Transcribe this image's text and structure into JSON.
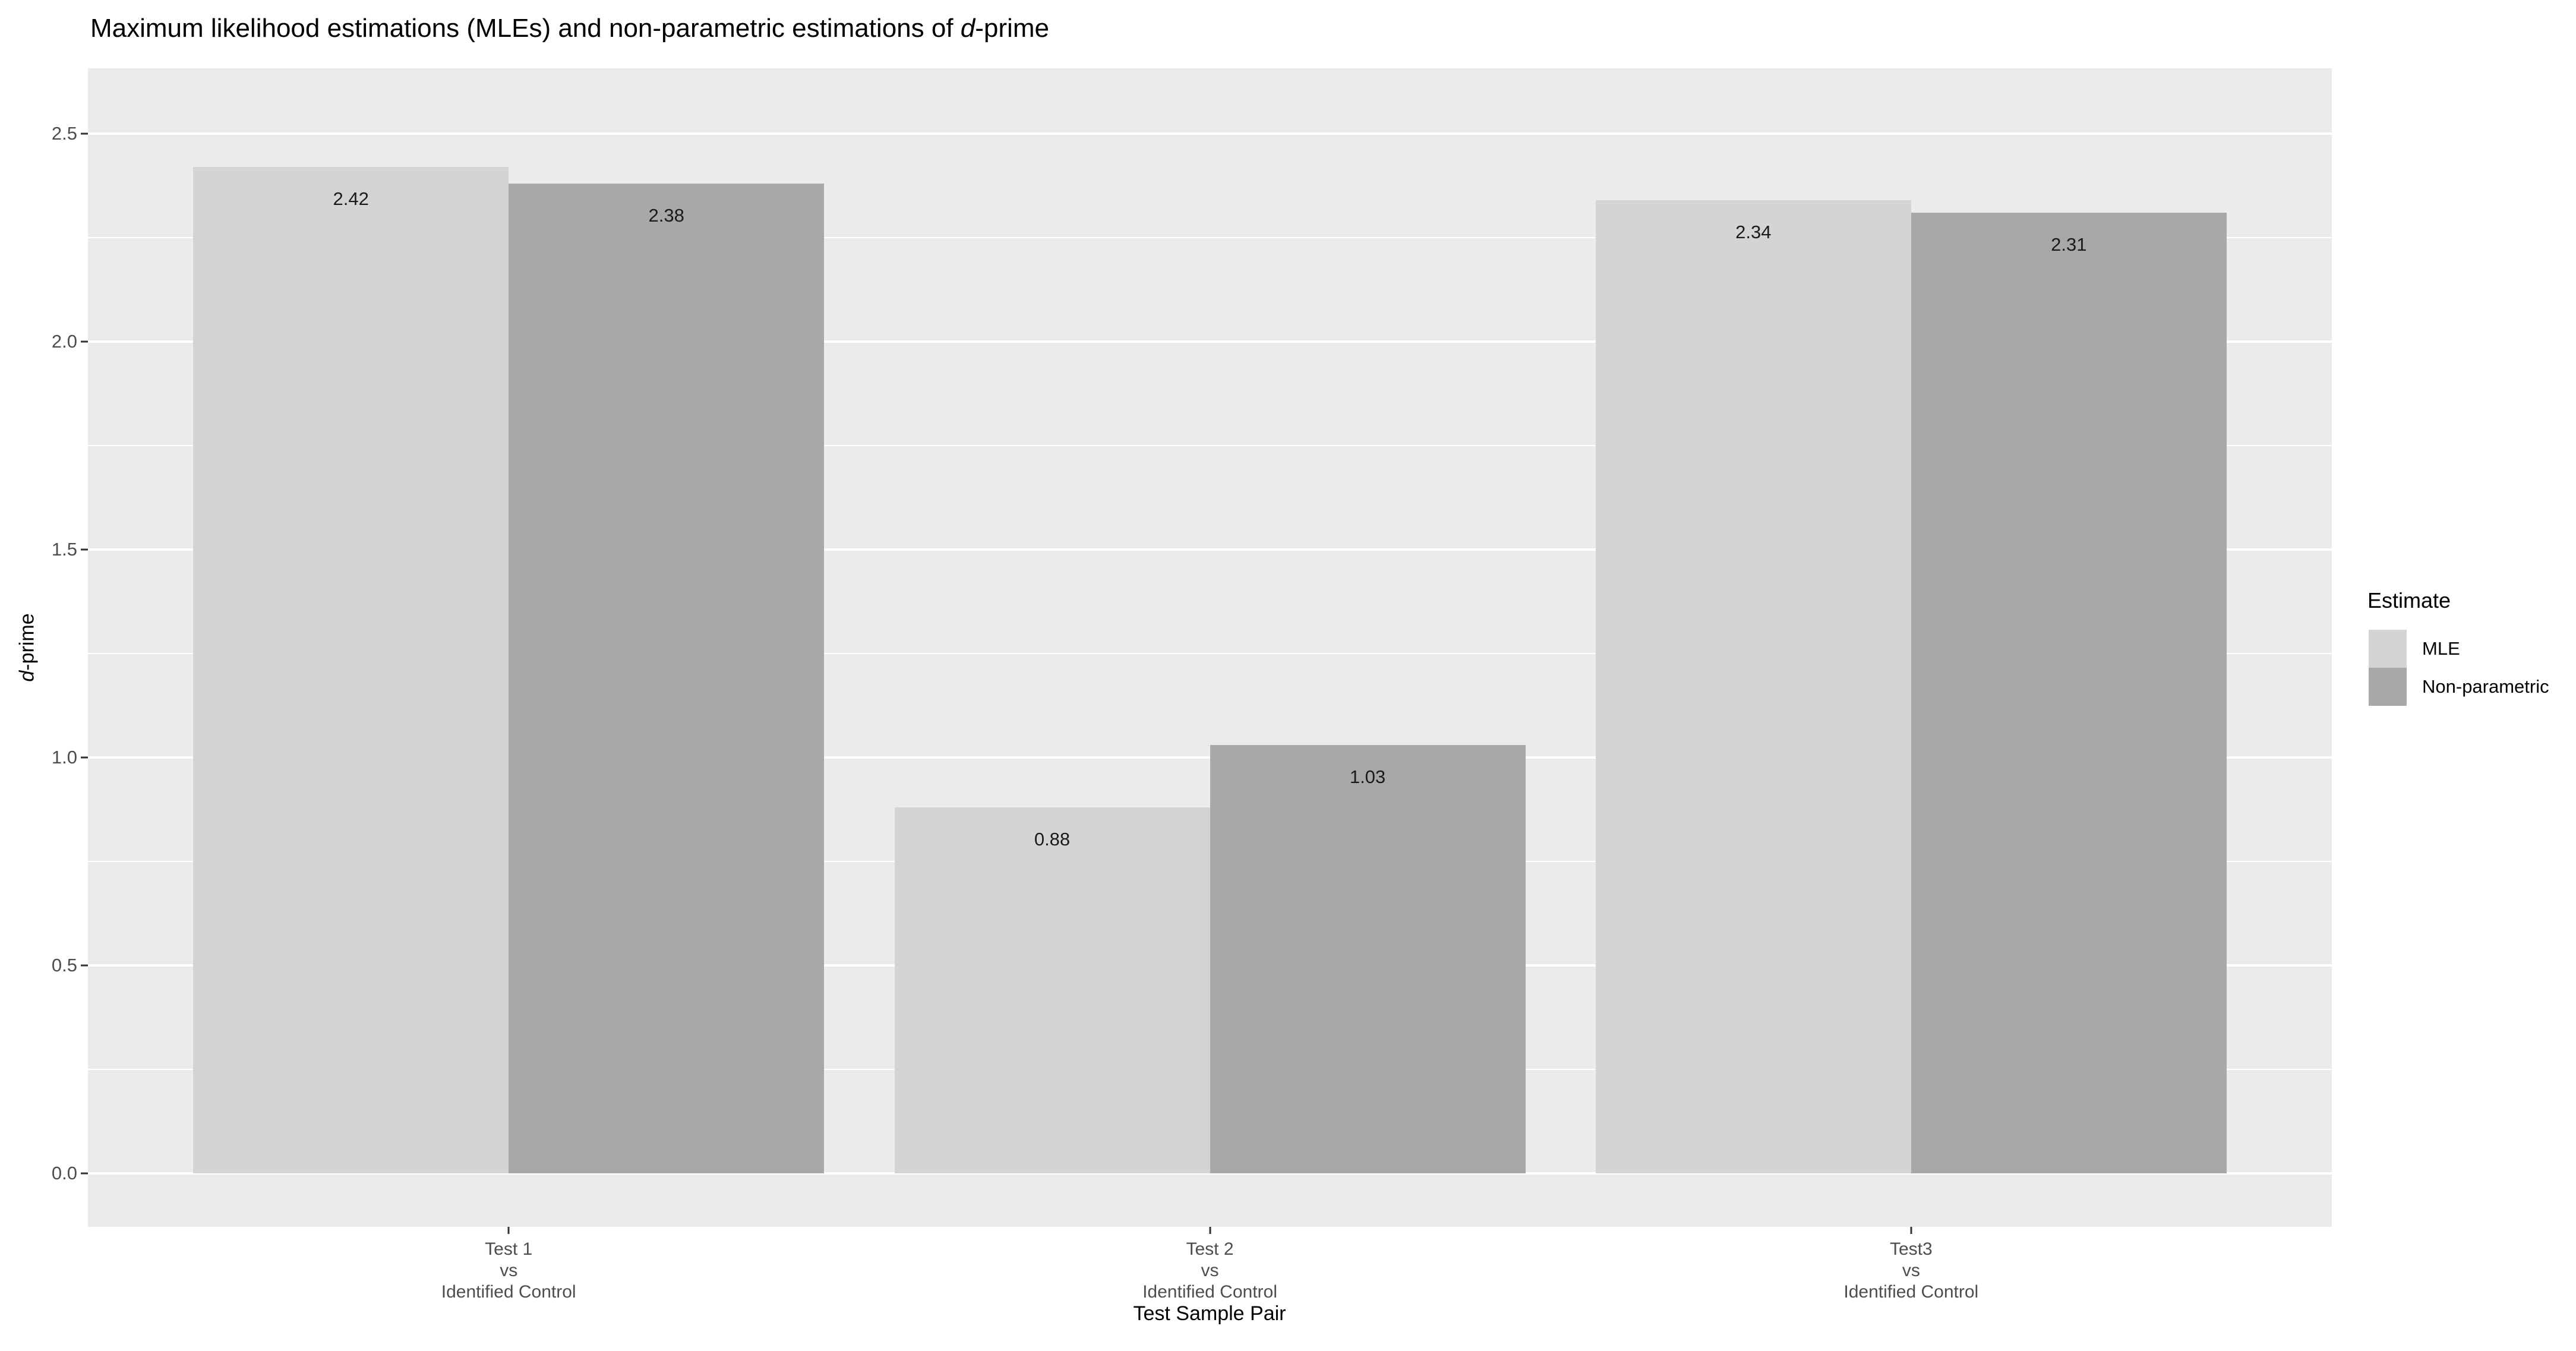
{
  "title": {
    "prefix": "Maximum likelihood estimations (MLEs) and non-parametric estimations of ",
    "italic_part": "d",
    "suffix": "-prime"
  },
  "chart_data": {
    "type": "bar",
    "title": "Maximum likelihood estimations (MLEs) and non-parametric estimations of d-prime",
    "categories": [
      {
        "lines": [
          "Test 1",
          "vs",
          "Identified Control"
        ]
      },
      {
        "lines": [
          "Test 2",
          "vs",
          "Identified Control"
        ]
      },
      {
        "lines": [
          "Test3",
          "vs",
          "Identified Control"
        ]
      }
    ],
    "series": [
      {
        "name": "MLE",
        "values": [
          2.42,
          0.88,
          2.34
        ],
        "value_labels": [
          "2.42",
          "0.88",
          "2.34"
        ],
        "color": "#d4d4d4"
      },
      {
        "name": "Non-parametric",
        "values": [
          2.38,
          1.03,
          2.31
        ],
        "value_labels": [
          "2.38",
          "1.03",
          "2.31"
        ],
        "color": "#a8a8a8"
      }
    ],
    "xlabel": "Test Sample Pair",
    "ylabel": "d-prime",
    "ylabel_parts": {
      "italic_part": "d",
      "suffix": "-prime"
    },
    "ylim": [
      0,
      2.5
    ],
    "y_axis": {
      "major_ticks": [
        0.0,
        0.5,
        1.0,
        1.5,
        2.0,
        2.5
      ],
      "major_tick_labels": [
        "0.0",
        "0.5",
        "1.0",
        "1.5",
        "2.0",
        "2.5"
      ],
      "minor_ticks": [
        0.25,
        0.75,
        1.25,
        1.75,
        2.25
      ]
    },
    "grid": "major-and-minor-white-on-gray",
    "legend_position": "right"
  },
  "legend": {
    "title": "Estimate",
    "items": [
      {
        "label": "MLE",
        "color": "#d4d4d4"
      },
      {
        "label": "Non-parametric",
        "color": "#a8a8a8"
      }
    ]
  },
  "colors": {
    "panel_background": "#ebebeb",
    "gridline": "#ffffff",
    "tick_text": "#4d4d4d",
    "axis_title_text": "#000000",
    "bar_value_text": "#1a1a1a",
    "series_mle": "#d4d4d4",
    "series_non_parametric": "#a8a8a8"
  }
}
